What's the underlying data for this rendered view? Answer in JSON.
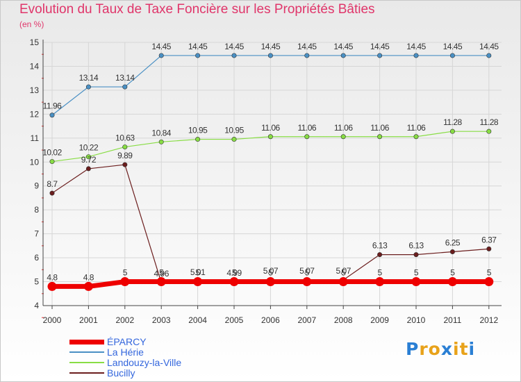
{
  "chart_data": {
    "type": "line",
    "title": "Evolution du Taux de Taxe Foncière sur les Propriétés Bâties",
    "unit": "(en %)",
    "xlabel": "",
    "ylabel": "",
    "ylim": [
      4,
      15
    ],
    "yticks": [
      "4",
      "5",
      "6",
      "7",
      "8",
      "9",
      "10",
      "11",
      "12",
      "13",
      "14",
      "15"
    ],
    "categories": [
      "2000",
      "2001",
      "2002",
      "2003",
      "2004",
      "2005",
      "2006",
      "2007",
      "2008",
      "2009",
      "2010",
      "2011",
      "2012"
    ],
    "legend_position": "bottom-left",
    "series": [
      {
        "name": "La Hérie",
        "color": "#4a90c4",
        "values": [
          11.96,
          13.14,
          13.14,
          14.45,
          14.45,
          14.45,
          14.45,
          14.45,
          14.45,
          14.45,
          14.45,
          14.45,
          14.45
        ],
        "labels": [
          "11.96",
          "13.14",
          "13.14",
          "14.45",
          "14.45",
          "14.45",
          "14.45",
          "14.45",
          "14.45",
          "14.45",
          "14.45",
          "14.45",
          "14.45"
        ]
      },
      {
        "name": "Landouzy-la-Ville",
        "color": "#88dd44",
        "values": [
          10.02,
          10.22,
          10.63,
          10.84,
          10.95,
          10.95,
          11.06,
          11.06,
          11.06,
          11.06,
          11.06,
          11.28,
          11.28
        ],
        "labels": [
          "10.02",
          "10.22",
          "10.63",
          "10.84",
          "10.95",
          "10.95",
          "11.06",
          "11.06",
          "11.06",
          "11.06",
          "11.06",
          "11.28",
          "11.28"
        ]
      },
      {
        "name": "Bucilly",
        "color": "#6b1d1d",
        "values": [
          8.7,
          9.72,
          9.89,
          4.96,
          5.01,
          4.99,
          5.07,
          5.07,
          5.07,
          6.13,
          6.13,
          6.25,
          6.37
        ],
        "labels": [
          "8.7",
          "9.72",
          "9.89",
          "4.96",
          "5.01",
          "4.99",
          "5.07",
          "5.07",
          "5.07",
          "6.13",
          "6.13",
          "6.25",
          "6.37"
        ]
      },
      {
        "name": "ÉPARCY",
        "color": "#ee0000",
        "values": [
          4.8,
          4.8,
          5,
          5,
          5,
          5,
          5,
          5,
          5,
          5,
          5,
          5,
          5
        ],
        "labels": [
          "4.8",
          "4.8",
          "5",
          "5",
          "5",
          "5",
          "5",
          "5",
          "5",
          "5",
          "5",
          "5",
          "5"
        ]
      }
    ]
  },
  "legend": [
    {
      "label": "ÉPARCY",
      "color": "#ee0000"
    },
    {
      "label": "La Hérie",
      "color": "#4a90c4"
    },
    {
      "label": "Landouzy-la-Ville",
      "color": "#88dd44"
    },
    {
      "label": "Bucilly",
      "color": "#6b1d1d"
    }
  ],
  "logo": {
    "letters": [
      "P",
      "r",
      "o",
      "x",
      "i",
      "t",
      "i"
    ],
    "colors": [
      "#2a7fd4",
      "#e8a21a",
      "#e8a21a",
      "#2a7fd4",
      "#e8a21a",
      "#e8a21a",
      "#2a7fd4"
    ]
  }
}
